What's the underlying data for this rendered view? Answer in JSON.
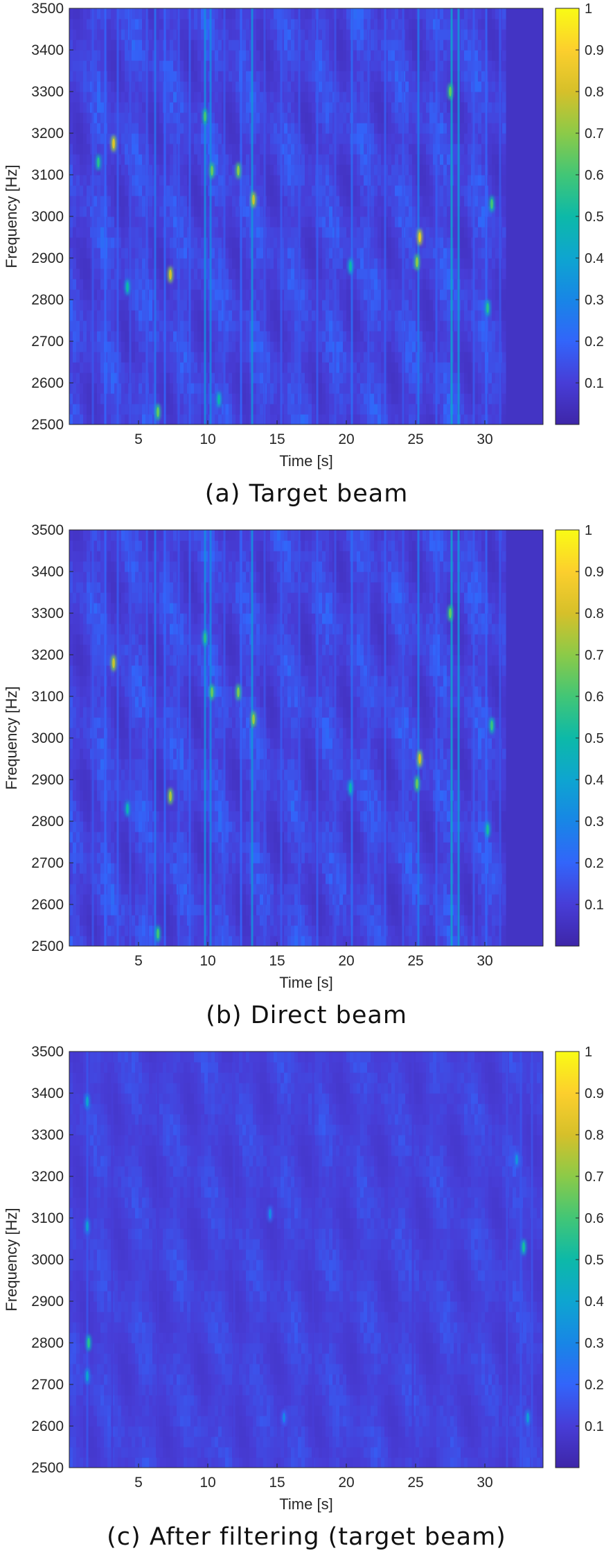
{
  "chart_data": [
    {
      "type": "heatmap",
      "panel_caption": "(a) Target beam",
      "title": "",
      "xlabel": "Time [s]",
      "ylabel": "Frequency [Hz]",
      "xlim": [
        0,
        34.2
      ],
      "ylim": [
        2500,
        3500
      ],
      "xticks": [
        5,
        10,
        15,
        20,
        25,
        30
      ],
      "yticks": [
        2500,
        2600,
        2700,
        2800,
        2900,
        3000,
        3100,
        3200,
        3300,
        3400,
        3500
      ],
      "colorbar": {
        "range": [
          0,
          1
        ],
        "ticks": [
          0.1,
          0.2,
          0.3,
          0.4,
          0.5,
          0.6,
          0.7,
          0.8,
          0.9,
          1
        ],
        "colormap": "parula"
      },
      "signal_end_time_s": 31.5,
      "background_level": 0.06,
      "texture_level": 0.12,
      "bright_lines": [
        {
          "t": 1.7,
          "level": 0.16
        },
        {
          "t": 2.6,
          "level": 0.2
        },
        {
          "t": 3.5,
          "level": 0.18
        },
        {
          "t": 4.4,
          "level": 0.15
        },
        {
          "t": 5.6,
          "level": 0.17
        },
        {
          "t": 6.2,
          "level": 0.24
        },
        {
          "t": 6.9,
          "level": 0.2
        },
        {
          "t": 7.9,
          "level": 0.16
        },
        {
          "t": 8.7,
          "level": 0.18
        },
        {
          "t": 9.8,
          "level": 0.32
        },
        {
          "t": 10.2,
          "level": 0.3
        },
        {
          "t": 11.2,
          "level": 0.16
        },
        {
          "t": 12.4,
          "level": 0.2
        },
        {
          "t": 13.2,
          "level": 0.34
        },
        {
          "t": 14.1,
          "level": 0.15
        },
        {
          "t": 15.3,
          "level": 0.17
        },
        {
          "t": 16.6,
          "level": 0.16
        },
        {
          "t": 17.9,
          "level": 0.18
        },
        {
          "t": 19.2,
          "level": 0.15
        },
        {
          "t": 20.4,
          "level": 0.22
        },
        {
          "t": 21.6,
          "level": 0.16
        },
        {
          "t": 22.8,
          "level": 0.18
        },
        {
          "t": 24.1,
          "level": 0.16
        },
        {
          "t": 25.2,
          "level": 0.26
        },
        {
          "t": 26.5,
          "level": 0.18
        },
        {
          "t": 27.6,
          "level": 0.4
        },
        {
          "t": 28.1,
          "level": 0.35
        },
        {
          "t": 29.2,
          "level": 0.17
        },
        {
          "t": 30.1,
          "level": 0.2
        },
        {
          "t": 31.1,
          "level": 0.16
        }
      ],
      "hot_spots": [
        {
          "t": 3.2,
          "f": 3175,
          "level": 0.72
        },
        {
          "t": 2.1,
          "f": 3130,
          "level": 0.45
        },
        {
          "t": 7.3,
          "f": 2860,
          "level": 0.7
        },
        {
          "t": 9.8,
          "f": 3240,
          "level": 0.5
        },
        {
          "t": 10.3,
          "f": 3110,
          "level": 0.55
        },
        {
          "t": 12.2,
          "f": 3110,
          "level": 0.6
        },
        {
          "t": 13.3,
          "f": 3040,
          "level": 0.68
        },
        {
          "t": 25.3,
          "f": 2950,
          "level": 0.75
        },
        {
          "t": 25.1,
          "f": 2890,
          "level": 0.6
        },
        {
          "t": 27.5,
          "f": 3300,
          "level": 0.55
        },
        {
          "t": 30.5,
          "f": 3030,
          "level": 0.5
        },
        {
          "t": 20.3,
          "f": 2880,
          "level": 0.4
        },
        {
          "t": 4.2,
          "f": 2830,
          "level": 0.4
        },
        {
          "t": 30.2,
          "f": 2780,
          "level": 0.45
        },
        {
          "t": 6.4,
          "f": 2530,
          "level": 0.55
        },
        {
          "t": 10.8,
          "f": 2560,
          "level": 0.4
        }
      ]
    },
    {
      "type": "heatmap",
      "panel_caption": "(b) Direct beam",
      "title": "",
      "xlabel": "Time [s]",
      "ylabel": "Frequency [Hz]",
      "xlim": [
        0,
        34.2
      ],
      "ylim": [
        2500,
        3500
      ],
      "xticks": [
        5,
        10,
        15,
        20,
        25,
        30
      ],
      "yticks": [
        2500,
        2600,
        2700,
        2800,
        2900,
        3000,
        3100,
        3200,
        3300,
        3400,
        3500
      ],
      "colorbar": {
        "range": [
          0,
          1
        ],
        "ticks": [
          0.1,
          0.2,
          0.3,
          0.4,
          0.5,
          0.6,
          0.7,
          0.8,
          0.9,
          1
        ],
        "colormap": "parula"
      },
      "signal_end_time_s": 31.5,
      "background_level": 0.06,
      "texture_level": 0.12,
      "bright_lines": [
        {
          "t": 1.7,
          "level": 0.16
        },
        {
          "t": 2.6,
          "level": 0.2
        },
        {
          "t": 3.5,
          "level": 0.18
        },
        {
          "t": 4.4,
          "level": 0.15
        },
        {
          "t": 5.6,
          "level": 0.17
        },
        {
          "t": 6.2,
          "level": 0.24
        },
        {
          "t": 6.9,
          "level": 0.2
        },
        {
          "t": 7.9,
          "level": 0.16
        },
        {
          "t": 8.7,
          "level": 0.18
        },
        {
          "t": 9.8,
          "level": 0.32
        },
        {
          "t": 10.2,
          "level": 0.3
        },
        {
          "t": 11.2,
          "level": 0.16
        },
        {
          "t": 12.4,
          "level": 0.2
        },
        {
          "t": 13.2,
          "level": 0.34
        },
        {
          "t": 14.1,
          "level": 0.15
        },
        {
          "t": 15.3,
          "level": 0.17
        },
        {
          "t": 16.6,
          "level": 0.16
        },
        {
          "t": 17.9,
          "level": 0.18
        },
        {
          "t": 19.2,
          "level": 0.15
        },
        {
          "t": 20.4,
          "level": 0.22
        },
        {
          "t": 21.6,
          "level": 0.16
        },
        {
          "t": 22.8,
          "level": 0.18
        },
        {
          "t": 24.1,
          "level": 0.16
        },
        {
          "t": 25.2,
          "level": 0.26
        },
        {
          "t": 26.5,
          "level": 0.18
        },
        {
          "t": 27.6,
          "level": 0.4
        },
        {
          "t": 28.1,
          "level": 0.35
        },
        {
          "t": 29.2,
          "level": 0.17
        },
        {
          "t": 30.1,
          "level": 0.2
        },
        {
          "t": 31.1,
          "level": 0.16
        }
      ],
      "hot_spots": [
        {
          "t": 3.2,
          "f": 3180,
          "level": 0.68
        },
        {
          "t": 7.3,
          "f": 2860,
          "level": 0.65
        },
        {
          "t": 9.8,
          "f": 3240,
          "level": 0.45
        },
        {
          "t": 10.3,
          "f": 3110,
          "level": 0.55
        },
        {
          "t": 12.2,
          "f": 3110,
          "level": 0.58
        },
        {
          "t": 13.3,
          "f": 3045,
          "level": 0.62
        },
        {
          "t": 25.3,
          "f": 2950,
          "level": 0.7
        },
        {
          "t": 25.1,
          "f": 2890,
          "level": 0.55
        },
        {
          "t": 27.5,
          "f": 3300,
          "level": 0.55
        },
        {
          "t": 30.5,
          "f": 3030,
          "level": 0.48
        },
        {
          "t": 20.3,
          "f": 2880,
          "level": 0.38
        },
        {
          "t": 4.2,
          "f": 2830,
          "level": 0.38
        },
        {
          "t": 30.2,
          "f": 2780,
          "level": 0.42
        },
        {
          "t": 6.4,
          "f": 2530,
          "level": 0.5
        }
      ]
    },
    {
      "type": "heatmap",
      "panel_caption": "(c) After filtering (target beam)",
      "title": "",
      "xlabel": "Time [s]",
      "ylabel": "Frequency [Hz]",
      "xlim": [
        0,
        34.2
      ],
      "ylim": [
        2500,
        3500
      ],
      "xticks": [
        5,
        10,
        15,
        20,
        25,
        30
      ],
      "yticks": [
        2500,
        2600,
        2700,
        2800,
        2900,
        3000,
        3100,
        3200,
        3300,
        3400,
        3500
      ],
      "colorbar": {
        "range": [
          0,
          1
        ],
        "ticks": [
          0.1,
          0.2,
          0.3,
          0.4,
          0.5,
          0.6,
          0.7,
          0.8,
          0.9,
          1
        ],
        "colormap": "parula"
      },
      "signal_end_time_s": 34.2,
      "background_level": 0.08,
      "texture_level": 0.07,
      "bright_lines": [
        {
          "t": 1.3,
          "level": 0.16
        },
        {
          "t": 3.1,
          "level": 0.1
        },
        {
          "t": 6.4,
          "level": 0.1
        },
        {
          "t": 11.9,
          "level": 0.11
        },
        {
          "t": 17.6,
          "level": 0.1
        },
        {
          "t": 24.8,
          "level": 0.1
        },
        {
          "t": 31.6,
          "level": 0.14
        },
        {
          "t": 32.6,
          "level": 0.16
        },
        {
          "t": 33.4,
          "level": 0.15
        }
      ],
      "hot_spots": [
        {
          "t": 1.4,
          "f": 2800,
          "level": 0.45
        },
        {
          "t": 1.3,
          "f": 2720,
          "level": 0.3
        },
        {
          "t": 1.3,
          "f": 3080,
          "level": 0.28
        },
        {
          "t": 1.3,
          "f": 3380,
          "level": 0.3
        },
        {
          "t": 32.8,
          "f": 3030,
          "level": 0.42
        },
        {
          "t": 33.1,
          "f": 2620,
          "level": 0.28
        },
        {
          "t": 32.3,
          "f": 3240,
          "level": 0.25
        },
        {
          "t": 14.5,
          "f": 3110,
          "level": 0.22
        },
        {
          "t": 15.5,
          "f": 2620,
          "level": 0.2
        }
      ]
    }
  ]
}
